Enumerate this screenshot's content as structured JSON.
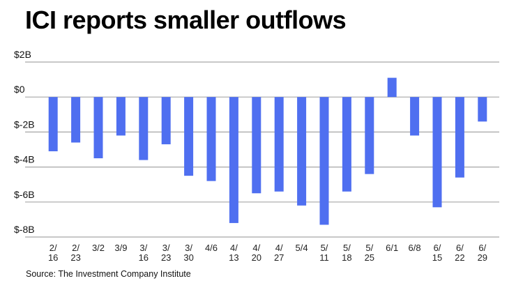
{
  "chart_data": {
    "type": "bar",
    "title": "ICI reports smaller outflows",
    "source": "Source: The Investment Company Institute",
    "xlabel": "",
    "ylabel": "",
    "ylim": [
      -8,
      2
    ],
    "yticks": [
      2,
      0,
      -2,
      -4,
      -6,
      -8
    ],
    "ytick_labels": [
      "$2B",
      "$0",
      "$-2B",
      "$-4B",
      "$-6B",
      "$-8B"
    ],
    "grid": true,
    "bar_color": "#4f6ff0",
    "grid_color": "#a6a6a6",
    "categories": [
      [
        "2/",
        "16"
      ],
      [
        "2/",
        "23"
      ],
      [
        "3/2"
      ],
      [
        "3/9"
      ],
      [
        "3/",
        "16"
      ],
      [
        "3/",
        "23"
      ],
      [
        "3/",
        "30"
      ],
      [
        "4/6"
      ],
      [
        "4/",
        "13"
      ],
      [
        "4/",
        "20"
      ],
      [
        "4/",
        "27"
      ],
      [
        "5/4"
      ],
      [
        "5/",
        "11"
      ],
      [
        "5/",
        "18"
      ],
      [
        "5/",
        "25"
      ],
      [
        "6/1"
      ],
      [
        "6/8"
      ],
      [
        "6/",
        "15"
      ],
      [
        "6/",
        "22"
      ],
      [
        "6/",
        "29"
      ]
    ],
    "category_dates": [
      "2/16",
      "2/23",
      "3/2",
      "3/9",
      "3/16",
      "3/23",
      "3/30",
      "4/6",
      "4/13",
      "4/20",
      "4/27",
      "5/4",
      "5/11",
      "5/18",
      "5/25",
      "6/1",
      "6/8",
      "6/15",
      "6/22",
      "6/29"
    ],
    "values": [
      -3.1,
      -2.6,
      -3.5,
      -2.2,
      -3.6,
      -2.7,
      -4.5,
      -4.8,
      -7.2,
      -5.5,
      -5.4,
      -6.2,
      -7.3,
      -5.4,
      -4.4,
      1.1,
      -2.2,
      -6.3,
      -4.6,
      -1.4
    ],
    "units": "billions of dollars"
  }
}
